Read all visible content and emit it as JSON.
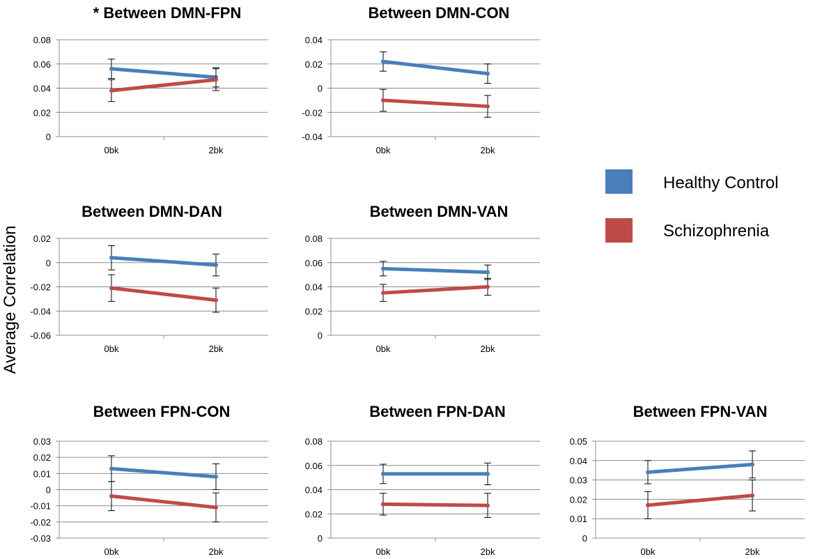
{
  "figure": {
    "ylabel": "Average Correlation",
    "legend": [
      {
        "label": "Healthy Control",
        "color": "#4a7ebb"
      },
      {
        "label": "Schizophrenia",
        "color": "#be4b48"
      }
    ]
  },
  "chart_data": [
    {
      "type": "line",
      "title": "* Between DMN-FPN",
      "categories": [
        "0bk",
        "2bk"
      ],
      "ylim": [
        0,
        0.08
      ],
      "yticks": [
        "0",
        "0.02",
        "0.04",
        "0.06",
        "0.08"
      ],
      "series": [
        {
          "name": "Healthy Control",
          "values": [
            0.056,
            0.049
          ],
          "errors": [
            0.008,
            0.008
          ]
        },
        {
          "name": "Schizophrenia",
          "values": [
            0.038,
            0.047
          ],
          "errors": [
            0.009,
            0.009
          ]
        }
      ]
    },
    {
      "type": "line",
      "title": "Between DMN-CON",
      "categories": [
        "0bk",
        "2bk"
      ],
      "ylim": [
        -0.04,
        0.04
      ],
      "yticks": [
        "-0.04",
        "-0.02",
        "0",
        "0.02",
        "0.04"
      ],
      "series": [
        {
          "name": "Healthy Control",
          "values": [
            0.022,
            0.012
          ],
          "errors": [
            0.008,
            0.008
          ]
        },
        {
          "name": "Schizophrenia",
          "values": [
            -0.01,
            -0.015
          ],
          "errors": [
            0.009,
            0.009
          ]
        }
      ]
    },
    {
      "type": "line",
      "title": "Between DMN-DAN",
      "categories": [
        "0bk",
        "2bk"
      ],
      "ylim": [
        -0.06,
        0.02
      ],
      "yticks": [
        "-0.06",
        "-0.04",
        "-0.02",
        "0",
        "0.02"
      ],
      "series": [
        {
          "name": "Healthy Control",
          "values": [
            0.004,
            -0.002
          ],
          "errors": [
            0.01,
            0.009
          ]
        },
        {
          "name": "Schizophrenia",
          "values": [
            -0.021,
            -0.031
          ],
          "errors": [
            0.011,
            0.01
          ]
        }
      ]
    },
    {
      "type": "line",
      "title": "Between DMN-VAN",
      "categories": [
        "0bk",
        "2bk"
      ],
      "ylim": [
        0,
        0.08
      ],
      "yticks": [
        "0",
        "0.02",
        "0.04",
        "0.06",
        "0.08"
      ],
      "series": [
        {
          "name": "Healthy Control",
          "values": [
            0.055,
            0.052
          ],
          "errors": [
            0.006,
            0.006
          ]
        },
        {
          "name": "Schizophrenia",
          "values": [
            0.035,
            0.04
          ],
          "errors": [
            0.007,
            0.007
          ]
        }
      ]
    },
    {
      "type": "line",
      "title": "Between FPN-CON",
      "categories": [
        "0bk",
        "2bk"
      ],
      "ylim": [
        -0.03,
        0.03
      ],
      "yticks": [
        "-0.03",
        "-0.02",
        "-0.01",
        "0",
        "0.01",
        "0.02",
        "0.03"
      ],
      "series": [
        {
          "name": "Healthy Control",
          "values": [
            0.013,
            0.008
          ],
          "errors": [
            0.008,
            0.008
          ]
        },
        {
          "name": "Schizophrenia",
          "values": [
            -0.004,
            -0.011
          ],
          "errors": [
            0.009,
            0.009
          ]
        }
      ]
    },
    {
      "type": "line",
      "title": "Between FPN-DAN",
      "categories": [
        "0bk",
        "2bk"
      ],
      "ylim": [
        0,
        0.08
      ],
      "yticks": [
        "0",
        "0.02",
        "0.04",
        "0.06",
        "0.08"
      ],
      "series": [
        {
          "name": "Healthy Control",
          "values": [
            0.053,
            0.053
          ],
          "errors": [
            0.008,
            0.009
          ]
        },
        {
          "name": "Schizophrenia",
          "values": [
            0.028,
            0.027
          ],
          "errors": [
            0.009,
            0.01
          ]
        }
      ]
    },
    {
      "type": "line",
      "title": "Between FPN-VAN",
      "categories": [
        "0bk",
        "2bk"
      ],
      "ylim": [
        0,
        0.05
      ],
      "yticks": [
        "0",
        "0.01",
        "0.02",
        "0.03",
        "0.04",
        "0.05"
      ],
      "series": [
        {
          "name": "Healthy Control",
          "values": [
            0.034,
            0.038
          ],
          "errors": [
            0.006,
            0.007
          ]
        },
        {
          "name": "Schizophrenia",
          "values": [
            0.017,
            0.022
          ],
          "errors": [
            0.007,
            0.008
          ]
        }
      ]
    }
  ]
}
